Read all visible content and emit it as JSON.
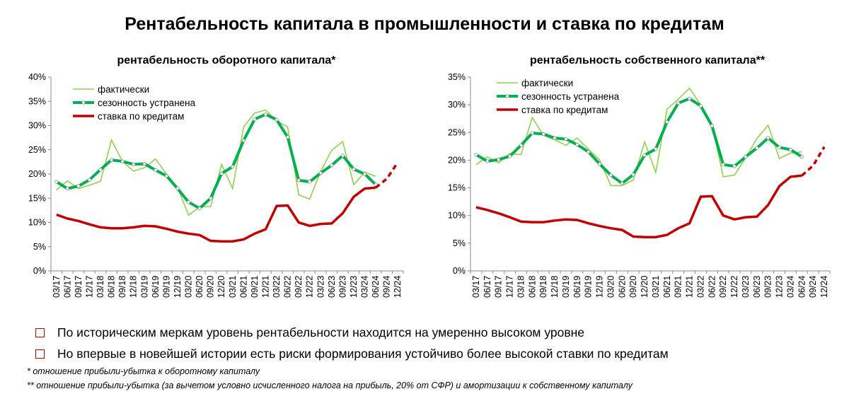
{
  "title": "Рентабельность капитала в промышленности и ставка по кредитам",
  "colors": {
    "actual": "#92d050",
    "sa": "#00b050",
    "rate": "#c00000"
  },
  "chart_data": [
    {
      "type": "line",
      "title": "рентабельность оборотного капитала*",
      "ylim": [
        0,
        40
      ],
      "yticks": [
        0,
        5,
        10,
        15,
        20,
        25,
        30,
        35,
        40
      ],
      "ytick_labels": [
        "0%",
        "5%",
        "10%",
        "15%",
        "20%",
        "25%",
        "30%",
        "35%",
        "40%"
      ],
      "tick_labels": [
        "03/17",
        "06/17",
        "09/17",
        "12/17",
        "03/18",
        "06/18",
        "09/18",
        "12/18",
        "03/19",
        "06/19",
        "09/19",
        "12/19",
        "03/20",
        "06/20",
        "09/20",
        "12/20",
        "03/21",
        "06/21",
        "09/21",
        "12/21",
        "03/22",
        "06/22",
        "09/22",
        "12/22",
        "03/23",
        "06/23",
        "09/23",
        "12/23",
        "03/24",
        "06/24",
        "09/24",
        "12/24"
      ],
      "legend": [
        "фактически",
        "сезонность устранена",
        "ставка по кредитам"
      ],
      "series": [
        {
          "name": "фактически",
          "values": [
            16.7,
            18.6,
            17.0,
            17.7,
            18.5,
            27.0,
            22.6,
            20.6,
            21.3,
            23.1,
            20.0,
            17.2,
            11.5,
            13.2,
            13.3,
            22.0,
            17.0,
            29.7,
            32.6,
            33.2,
            31.0,
            29.7,
            15.7,
            14.8,
            20.6,
            24.9,
            26.7,
            17.8,
            20.4,
            19.5
          ]
        },
        {
          "name": "сезонность устранена",
          "values": [
            18.4,
            17.0,
            17.5,
            18.8,
            20.9,
            22.9,
            22.6,
            22.0,
            22.1,
            20.8,
            19.6,
            17.0,
            14.2,
            12.9,
            15.0,
            20.1,
            21.5,
            26.9,
            31.3,
            32.3,
            31.2,
            27.6,
            18.7,
            18.4,
            20.2,
            21.8,
            23.8,
            21.0,
            20.0,
            17.8
          ]
        },
        {
          "name": "ставка по кредитам",
          "values": [
            11.6,
            10.8,
            10.3,
            9.6,
            9.0,
            8.8,
            8.8,
            9.0,
            9.3,
            9.2,
            8.7,
            8.1,
            7.7,
            7.4,
            6.2,
            6.1,
            6.1,
            6.5,
            7.7,
            8.6,
            13.4,
            13.5,
            10.0,
            9.3,
            9.7,
            9.8,
            11.9,
            15.3,
            17.0,
            17.2
          ]
        },
        {
          "name": "ставка по кредитам (прогноз)",
          "values": [
            17.2,
            19.0,
            22.4
          ]
        }
      ]
    },
    {
      "type": "line",
      "title": "рентабельность собственного капитала**",
      "ylim": [
        0,
        35
      ],
      "yticks": [
        0,
        5,
        10,
        15,
        20,
        25,
        30,
        35
      ],
      "ytick_labels": [
        "0%",
        "5%",
        "10%",
        "15%",
        "20%",
        "25%",
        "30%",
        "35%"
      ],
      "tick_labels": [
        "03/17",
        "06/17",
        "09/17",
        "12/17",
        "03/18",
        "06/18",
        "09/18",
        "12/18",
        "03/19",
        "06/19",
        "09/19",
        "12/19",
        "03/20",
        "06/20",
        "09/20",
        "12/20",
        "03/21",
        "06/21",
        "09/21",
        "12/21",
        "03/22",
        "06/22",
        "09/22",
        "12/22",
        "03/23",
        "06/23",
        "09/23",
        "12/23",
        "03/24",
        "06/24",
        "09/24",
        "12/24"
      ],
      "legend": [
        "фактически",
        "сезонность устранена",
        "ставка по кредитам"
      ],
      "series": [
        {
          "name": "фактически",
          "values": [
            19.2,
            20.6,
            19.5,
            21.2,
            21.0,
            27.7,
            24.5,
            23.7,
            22.7,
            24.0,
            22.0,
            20.0,
            15.4,
            15.4,
            16.4,
            23.3,
            17.8,
            29.2,
            31.0,
            33.0,
            30.0,
            26.5,
            17.0,
            17.3,
            20.4,
            23.9,
            26.3,
            20.3,
            21.3,
            21.5
          ]
        },
        {
          "name": "сезонность устранена",
          "values": [
            21.0,
            19.8,
            20.1,
            20.7,
            22.7,
            24.9,
            24.7,
            24.0,
            23.8,
            22.8,
            21.5,
            19.3,
            17.3,
            15.8,
            17.4,
            20.9,
            22.0,
            26.9,
            30.3,
            31.1,
            29.8,
            26.2,
            19.2,
            18.9,
            20.6,
            22.2,
            24.0,
            22.3,
            21.9,
            20.6
          ]
        },
        {
          "name": "ставка по кредитам",
          "values": [
            11.5,
            11.0,
            10.4,
            9.7,
            8.9,
            8.8,
            8.8,
            9.1,
            9.3,
            9.2,
            8.6,
            8.1,
            7.7,
            7.4,
            6.2,
            6.1,
            6.1,
            6.5,
            7.7,
            8.6,
            13.4,
            13.5,
            10.0,
            9.3,
            9.7,
            9.8,
            11.9,
            15.3,
            17.0,
            17.2
          ]
        },
        {
          "name": "ставка по кредитам (прогноз)",
          "values": [
            17.2,
            19.0,
            22.4
          ]
        }
      ]
    }
  ],
  "bullets": [
    "По историческим меркам уровень рентабельности находится на умеренно высоком уровне",
    "Но впервые в новейшей истории есть риски формирования устойчиво более высокой ставки по кредитам"
  ],
  "notes": [
    "* отношение прибыли-убытка к оборотному капиталу",
    "**  отношение прибыли-убытка (за вычетом условно исчисленного налога на прибыль, 20% от СФР) и амортизации к собственному капиталу"
  ]
}
